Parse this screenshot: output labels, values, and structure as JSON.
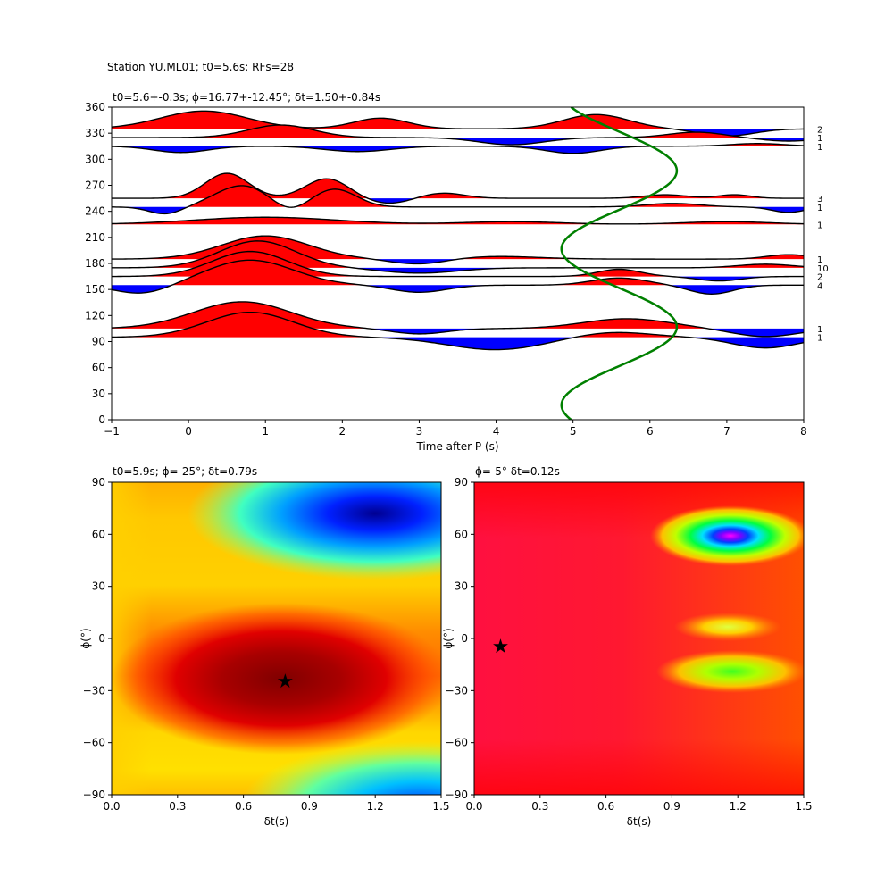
{
  "suptitle": "Station YU.ML01; t0=5.6s; RFs=28",
  "chart_data": [
    {
      "type": "line",
      "title": "t0=5.6+-0.3s; ϕ=16.77+-12.45°; δt=1.50+-0.84s",
      "xlabel": "Time after P (s)",
      "ylabel": "",
      "xlim": [
        -1,
        8
      ],
      "ylim": [
        0,
        360
      ],
      "xticks": [
        "−1",
        "0",
        "1",
        "2",
        "3",
        "4",
        "5",
        "6",
        "7",
        "8"
      ],
      "yticks": [
        "0",
        "30",
        "60",
        "90",
        "120",
        "150",
        "180",
        "210",
        "240",
        "270",
        "300",
        "330",
        "360"
      ],
      "fill_colors": {
        "positive": "#ff0000",
        "negative": "#0000ff"
      },
      "curve_color": "#008000",
      "traces": [
        {
          "baz": 335,
          "count": "2"
        },
        {
          "baz": 325,
          "count": "1"
        },
        {
          "baz": 315,
          "count": "1"
        },
        {
          "baz": 255,
          "count": "3"
        },
        {
          "baz": 245,
          "count": "1"
        },
        {
          "baz": 225,
          "count": "1"
        },
        {
          "baz": 185,
          "count": "1"
        },
        {
          "baz": 175,
          "count": "10"
        },
        {
          "baz": 165,
          "count": "2"
        },
        {
          "baz": 155,
          "count": "4"
        },
        {
          "baz": 105,
          "count": "1"
        },
        {
          "baz": 95,
          "count": "1"
        }
      ],
      "model_curve": {
        "center": 5.6,
        "amplitude": 0.75,
        "phase_deg": 16.77
      }
    },
    {
      "type": "heatmap",
      "title": "t0=5.9s; ϕ=-25°; δt=0.79s",
      "xlabel": "δt(s)",
      "ylabel": "ϕ(°)",
      "xlim": [
        0,
        1.5
      ],
      "ylim": [
        -90,
        90
      ],
      "xticks": [
        "0.0",
        "0.3",
        "0.6",
        "0.9",
        "1.2",
        "1.5"
      ],
      "yticks": [
        "−90",
        "−60",
        "−30",
        "0",
        "30",
        "60",
        "90"
      ],
      "colormap": "jet",
      "best": {
        "dt": 0.79,
        "phi": -25
      }
    },
    {
      "type": "heatmap",
      "title": "ϕ=-5° δt=0.12s",
      "xlabel": "δt(s)",
      "ylabel": "ϕ(°)",
      "xlim": [
        0,
        1.5
      ],
      "ylim": [
        -90,
        90
      ],
      "xticks": [
        "0.0",
        "0.3",
        "0.6",
        "0.9",
        "1.2",
        "1.5"
      ],
      "yticks": [
        "−90",
        "−60",
        "−30",
        "0",
        "30",
        "60",
        "90"
      ],
      "colormap": "jet",
      "best": {
        "dt": 0.12,
        "phi": -5
      }
    }
  ]
}
